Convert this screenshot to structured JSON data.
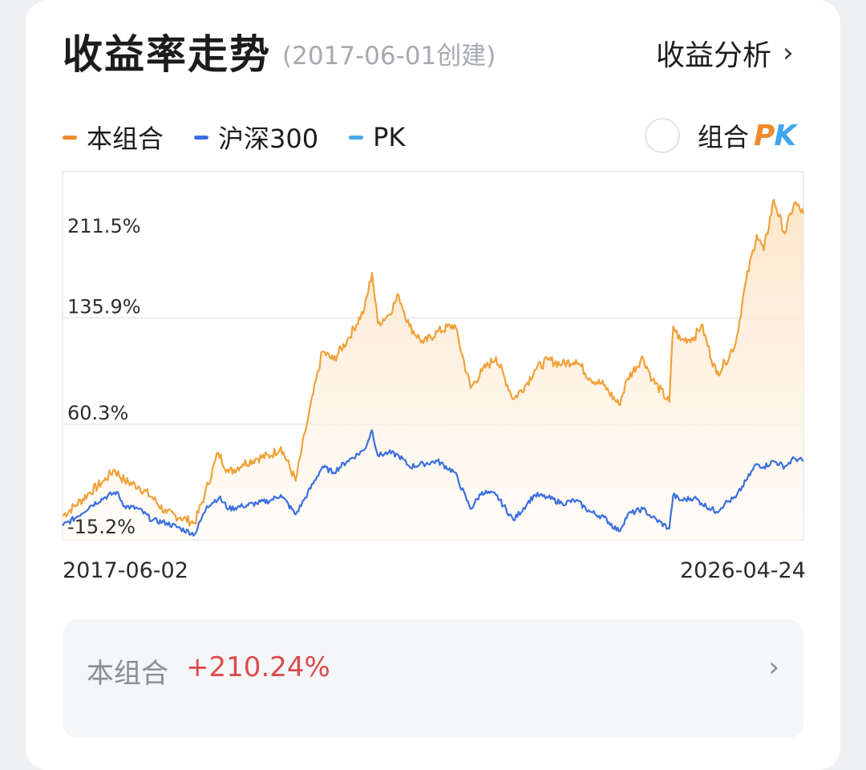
{
  "header": {
    "title": "收益率走势",
    "subtitle": "(2017-06-01创建)",
    "analysis_label": "收益分析",
    "analysis_chevron": "›"
  },
  "legend": {
    "items": [
      {
        "label": "本组合",
        "color": "#f08a2d"
      },
      {
        "label": "沪深300",
        "color": "#3b6fe0"
      },
      {
        "label": "PK",
        "color": "#4aa8e8"
      }
    ]
  },
  "pk_toggle": {
    "label": "组合",
    "logo_p": "P",
    "logo_k": "K",
    "checked": false
  },
  "colors": {
    "portfolio": "#f0a23a",
    "benchmark": "#3b6fe0",
    "fill_top": "#fde3c4",
    "fill_bottom": "#fffaf3",
    "grid": "#e6e6e6",
    "positive": "#dc4b4b"
  },
  "chart_data": {
    "type": "line",
    "x_range": [
      "2017-06-02",
      "2026-04-24"
    ],
    "y_ticks": [
      {
        "value": 211.5,
        "label": "211.5%"
      },
      {
        "value": 135.9,
        "label": "135.9%"
      },
      {
        "value": 60.3,
        "label": "60.3%"
      },
      {
        "value": -15.2,
        "label": "-15.2%"
      }
    ],
    "ylim": [
      -22,
      240
    ],
    "series": [
      {
        "name": "本组合",
        "points": [
          [
            "2017-06-02",
            -5
          ],
          [
            "2017-08-01",
            3
          ],
          [
            "2017-10-01",
            12
          ],
          [
            "2017-12-01",
            20
          ],
          [
            "2018-01-15",
            28
          ],
          [
            "2018-03-01",
            20
          ],
          [
            "2018-05-01",
            16
          ],
          [
            "2018-07-01",
            8
          ],
          [
            "2018-09-01",
            -3
          ],
          [
            "2018-11-01",
            -6
          ],
          [
            "2019-01-02",
            -10
          ],
          [
            "2019-02-15",
            10
          ],
          [
            "2019-04-15",
            40
          ],
          [
            "2019-06-01",
            26
          ],
          [
            "2019-08-01",
            32
          ],
          [
            "2019-10-01",
            36
          ],
          [
            "2019-12-01",
            38
          ],
          [
            "2020-01-15",
            44
          ],
          [
            "2020-03-20",
            20
          ],
          [
            "2020-05-01",
            55
          ],
          [
            "2020-07-15",
            112
          ],
          [
            "2020-09-01",
            106
          ],
          [
            "2020-11-01",
            120
          ],
          [
            "2021-01-15",
            142
          ],
          [
            "2021-02-18",
            168
          ],
          [
            "2021-03-15",
            132
          ],
          [
            "2021-05-01",
            138
          ],
          [
            "2021-06-15",
            152
          ],
          [
            "2021-08-01",
            130
          ],
          [
            "2021-10-01",
            118
          ],
          [
            "2021-12-01",
            126
          ],
          [
            "2022-02-15",
            131
          ],
          [
            "2022-04-26",
            86
          ],
          [
            "2022-06-15",
            98
          ],
          [
            "2022-08-15",
            108
          ],
          [
            "2022-10-31",
            78
          ],
          [
            "2022-12-31",
            90
          ],
          [
            "2023-02-01",
            99
          ],
          [
            "2023-04-01",
            106
          ],
          [
            "2023-06-01",
            103
          ],
          [
            "2023-08-01",
            106
          ],
          [
            "2023-10-01",
            93
          ],
          [
            "2023-12-01",
            88
          ],
          [
            "2024-02-05",
            74
          ],
          [
            "2024-03-15",
            93
          ],
          [
            "2024-05-20",
            108
          ],
          [
            "2024-07-01",
            92
          ],
          [
            "2024-09-13",
            76
          ],
          [
            "2024-09-30",
            130
          ],
          [
            "2024-11-01",
            120
          ],
          [
            "2024-12-31",
            122
          ],
          [
            "2025-02-01",
            131
          ],
          [
            "2025-04-08",
            96
          ],
          [
            "2025-05-15",
            104
          ],
          [
            "2025-07-01",
            118
          ],
          [
            "2025-08-15",
            162
          ],
          [
            "2025-10-01",
            195
          ],
          [
            "2025-11-01",
            184
          ],
          [
            "2025-12-15",
            220
          ],
          [
            "2026-02-01",
            196
          ],
          [
            "2026-03-15",
            218
          ],
          [
            "2026-04-24",
            210.24
          ]
        ]
      },
      {
        "name": "沪深300",
        "points": [
          [
            "2017-06-02",
            -12
          ],
          [
            "2017-08-01",
            -6
          ],
          [
            "2017-10-01",
            2
          ],
          [
            "2017-12-01",
            8
          ],
          [
            "2018-01-25",
            12
          ],
          [
            "2018-03-01",
            2
          ],
          [
            "2018-05-01",
            0
          ],
          [
            "2018-07-01",
            -8
          ],
          [
            "2018-09-01",
            -10
          ],
          [
            "2018-11-01",
            -14
          ],
          [
            "2019-01-03",
            -18
          ],
          [
            "2019-02-25",
            2
          ],
          [
            "2019-04-19",
            8
          ],
          [
            "2019-06-01",
            0
          ],
          [
            "2019-08-01",
            2
          ],
          [
            "2019-10-01",
            4
          ],
          [
            "2019-12-01",
            6
          ],
          [
            "2020-01-15",
            10
          ],
          [
            "2020-03-20",
            -4
          ],
          [
            "2020-05-01",
            8
          ],
          [
            "2020-07-15",
            30
          ],
          [
            "2020-09-01",
            26
          ],
          [
            "2020-11-01",
            34
          ],
          [
            "2021-01-15",
            42
          ],
          [
            "2021-02-18",
            56
          ],
          [
            "2021-03-15",
            38
          ],
          [
            "2021-05-01",
            40
          ],
          [
            "2021-06-15",
            38
          ],
          [
            "2021-08-01",
            30
          ],
          [
            "2021-10-01",
            32
          ],
          [
            "2021-12-01",
            34
          ],
          [
            "2022-02-15",
            26
          ],
          [
            "2022-04-26",
            0
          ],
          [
            "2022-06-15",
            12
          ],
          [
            "2022-08-15",
            10
          ],
          [
            "2022-10-31",
            -8
          ],
          [
            "2022-12-31",
            4
          ],
          [
            "2023-02-01",
            10
          ],
          [
            "2023-04-01",
            8
          ],
          [
            "2023-06-01",
            4
          ],
          [
            "2023-08-01",
            6
          ],
          [
            "2023-10-01",
            -2
          ],
          [
            "2023-12-01",
            -6
          ],
          [
            "2024-02-05",
            -16
          ],
          [
            "2024-03-15",
            -4
          ],
          [
            "2024-05-20",
            0
          ],
          [
            "2024-07-01",
            -6
          ],
          [
            "2024-09-13",
            -14
          ],
          [
            "2024-09-30",
            10
          ],
          [
            "2024-11-01",
            6
          ],
          [
            "2024-12-31",
            8
          ],
          [
            "2025-02-01",
            4
          ],
          [
            "2025-04-08",
            -2
          ],
          [
            "2025-05-15",
            4
          ],
          [
            "2025-07-01",
            8
          ],
          [
            "2025-08-15",
            20
          ],
          [
            "2025-10-01",
            32
          ],
          [
            "2025-11-01",
            30
          ],
          [
            "2025-12-15",
            34
          ],
          [
            "2026-02-01",
            30
          ],
          [
            "2026-03-15",
            36
          ],
          [
            "2026-04-24",
            34
          ]
        ]
      }
    ]
  },
  "dates": {
    "start": "2017-06-02",
    "end": "2026-04-24"
  },
  "summary": {
    "label": "本组合",
    "value": "+210.24%",
    "chevron": "›"
  }
}
